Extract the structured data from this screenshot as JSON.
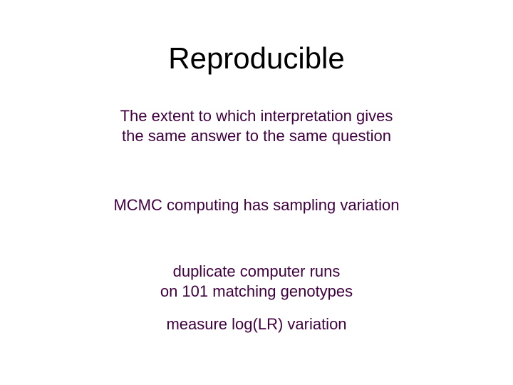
{
  "title": {
    "text": "Reproducible",
    "color": "#000000",
    "fontsize": 42
  },
  "subtitle": {
    "line1": "The extent to which interpretation gives",
    "line2": "the same answer to the same question",
    "color": "#400040",
    "fontsize": 22
  },
  "body1": {
    "text": "MCMC computing has sampling variation",
    "color": "#400040",
    "fontsize": 22
  },
  "body2": {
    "line1": "duplicate computer runs",
    "line2": "on 101 matching genotypes",
    "color": "#400040",
    "fontsize": 22
  },
  "body3": {
    "text": "measure log(LR) variation",
    "color": "#400040",
    "fontsize": 22
  },
  "background_color": "#ffffff"
}
